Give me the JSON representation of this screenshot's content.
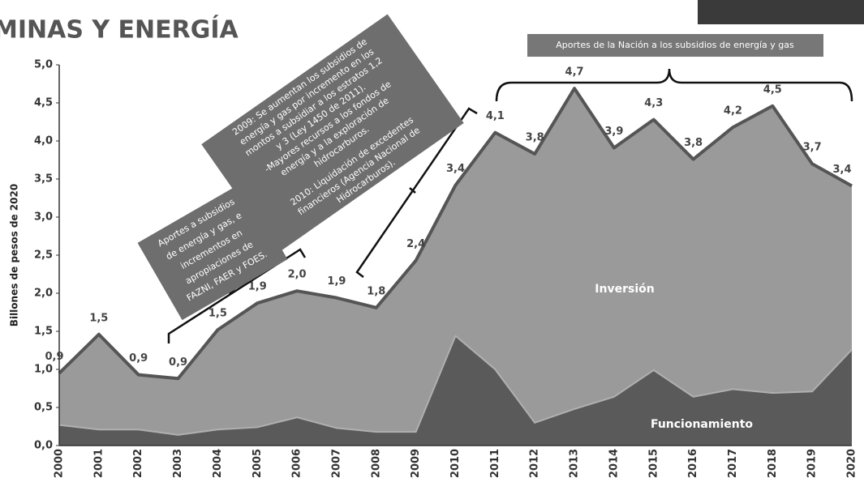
{
  "chart_data": {
    "type": "stacked_area",
    "title": "MINAS Y ENERGÍA",
    "y_label": "Billones de pesos de 2020",
    "categories": [
      "2000",
      "2001",
      "2002",
      "2003",
      "2004",
      "2005",
      "2006",
      "2007",
      "2008",
      "2009",
      "2010",
      "2011",
      "2012",
      "2013",
      "2014",
      "2015",
      "2016",
      "2017",
      "2018",
      "2019",
      "2020"
    ],
    "series": [
      {
        "name": "Funcionamiento",
        "color": "#5a5a5a",
        "values": [
          0.27,
          0.21,
          0.21,
          0.14,
          0.21,
          0.24,
          0.37,
          0.23,
          0.18,
          0.18,
          1.44,
          1.0,
          0.3,
          0.48,
          0.64,
          0.99,
          0.64,
          0.74,
          0.69,
          0.71,
          1.26
        ]
      },
      {
        "name": "Inversión",
        "color": "#9a9a9a",
        "values": [
          0.68,
          1.25,
          0.72,
          0.74,
          1.31,
          1.63,
          1.66,
          1.71,
          1.63,
          2.25,
          1.98,
          3.11,
          3.53,
          4.21,
          3.27,
          3.29,
          3.12,
          3.44,
          3.77,
          2.99,
          2.15
        ]
      }
    ],
    "total": {
      "values": [
        0.95,
        1.46,
        0.93,
        0.88,
        1.52,
        1.87,
        2.03,
        1.94,
        1.81,
        2.43,
        3.42,
        4.11,
        3.83,
        4.69,
        3.91,
        4.28,
        3.76,
        4.18,
        4.46,
        3.7,
        3.41
      ],
      "value_labels": [
        "0,9",
        "1,5",
        "0,9",
        "0,9",
        "1,5",
        "1,9",
        "2,0",
        "1,9",
        "1,8",
        "2,4",
        "3,4",
        "4,1",
        "3,8",
        "4,7",
        "3,9",
        "4,3",
        "3,8",
        "4,2",
        "4,5",
        "3,7",
        "3,4"
      ]
    },
    "ylim": [
      0,
      5
    ],
    "yticks": [
      {
        "value": 0,
        "label": "0,0"
      },
      {
        "value": 0.5,
        "label": "0,5"
      },
      {
        "value": 1,
        "label": "1,0"
      },
      {
        "value": 1.5,
        "label": "1,5"
      },
      {
        "value": 2,
        "label": "2,0"
      },
      {
        "value": 2.5,
        "label": "2,5"
      },
      {
        "value": 3,
        "label": "3,0"
      },
      {
        "value": 3.5,
        "label": "3,5"
      },
      {
        "value": 4,
        "label": "4,0"
      },
      {
        "value": 4.5,
        "label": "4,5"
      },
      {
        "value": 5,
        "label": "5,0"
      }
    ],
    "annotations": [
      {
        "lines": [
          "Aportes a subsidios",
          "de energía y gas, e",
          "incrementos en",
          "apropiaciones de",
          "FAZNI, FAER y FOES."
        ]
      },
      {
        "lines": [
          "2009: Se aumentan los subsidios de",
          "energía y gas por incremento en los",
          "montos a subsidiar a los estratos 1,2",
          "y 3 (Ley 1450 de 2011).",
          "-Mayores recursos a los fondos de",
          "energía y a la exploración de",
          "hidrocarburos."
        ]
      },
      {
        "lines": [
          "2010: Liquidación de excedentes",
          "financieros (Agencia Nacional de",
          "Hidrocarburos)."
        ]
      },
      {
        "lines": [
          "Aportes de la Nación a los subsidios de energía y gas"
        ]
      }
    ]
  }
}
